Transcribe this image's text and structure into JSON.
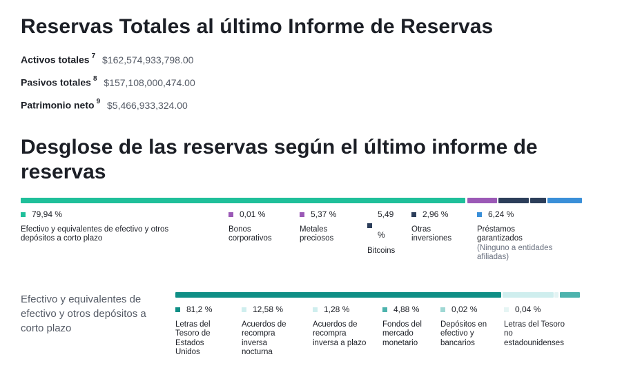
{
  "header": {
    "title": "Reservas Totales al último Informe de Reservas"
  },
  "totals": [
    {
      "label": "Activos totales",
      "sup": "7",
      "value": "$162,574,933,798.00"
    },
    {
      "label": "Pasivos totales",
      "sup": "8",
      "value": "$157,108,000,474.00"
    },
    {
      "label": "Patrimonio neto",
      "sup": "9",
      "value": "$5,466,933,324.00"
    }
  ],
  "breakdown": {
    "title": "Desglose de las reservas según el último informe de reservas",
    "items": [
      {
        "pct": "79,94 %",
        "label": "Efectivo y equivalentes de efectivo y otros depósitos a corto plazo",
        "color": "#1fbf9a"
      },
      {
        "pct": "0,01 %",
        "label": "Bonos corporativos",
        "color": "#9b59b6"
      },
      {
        "pct": "5,37 %",
        "label": "Metales preciosos",
        "color": "#9b59b6"
      },
      {
        "pct": "5,49",
        "pct_suffix": "%",
        "label": "Bitcoins",
        "color": "#2c3e5a"
      },
      {
        "pct": "2,96 %",
        "label": "Otras inversiones",
        "color": "#2c3e5a"
      },
      {
        "pct": "6,24 %",
        "label": "Préstamos garantizados",
        "sub": "(Ninguno a entidades afiliadas)",
        "color": "#3a8fd8"
      }
    ]
  },
  "cash": {
    "title": "Efectivo y equivalentes de efectivo y otros depósitos a corto plazo",
    "items": [
      {
        "pct": "81,2 %",
        "label": "Letras del Tesoro de Estados Unidos",
        "color": "#0f8f86"
      },
      {
        "pct": "12,58 %",
        "label": "Acuerdos de recompra inversa nocturna",
        "color": "#cfeeee"
      },
      {
        "pct": "1,28 %",
        "label": "Acuerdos de recompra inversa a plazo",
        "color": "#cfeeee"
      },
      {
        "pct": "4,88 %",
        "label": "Fondos del mercado monetario",
        "color": "#4db3ad"
      },
      {
        "pct": "0,02 %",
        "label": "Depósitos en efectivo y bancarios",
        "color": "#9fd8d4"
      },
      {
        "pct": "0,04 %",
        "label": "Letras del Tesoro no estadounidenses",
        "color": "#e6f5f4"
      }
    ]
  }
}
